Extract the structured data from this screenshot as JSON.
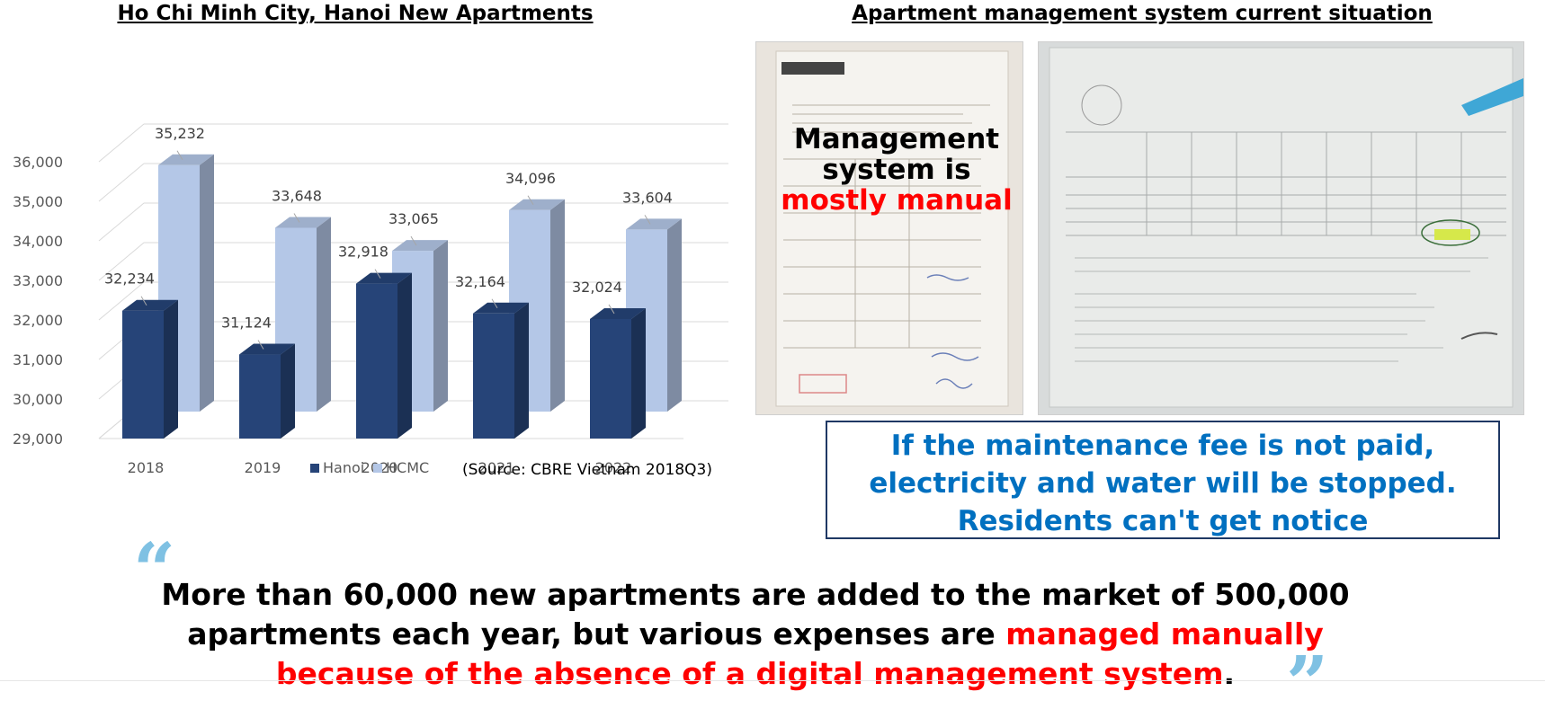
{
  "left_title": "Ho Chi Minh City, Hanoi New Apartments",
  "right_title": "Apartment management system current situation",
  "chart_data": {
    "type": "bar",
    "title": "Ho Chi Minh City, Hanoi New Apartments",
    "categories": [
      "2018",
      "2019",
      "2020",
      "2021",
      "2022"
    ],
    "series": [
      {
        "name": "Hanoi",
        "values": [
          32234,
          31124,
          32918,
          32164,
          32024
        ],
        "labels": [
          "32,234",
          "31,124",
          "32,918",
          "32,164",
          "32,024"
        ],
        "color": "#264478"
      },
      {
        "name": "HCMC",
        "values": [
          35232,
          33648,
          33065,
          34096,
          33604
        ],
        "labels": [
          "35,232",
          "33,648",
          "33,065",
          "34,096",
          "33,604"
        ],
        "color": "#b4c7e7"
      }
    ],
    "ylim": [
      29000,
      36000
    ],
    "yticks": [
      29000,
      30000,
      31000,
      32000,
      33000,
      34000,
      35000,
      36000
    ],
    "ytick_labels": [
      "29,000",
      "30,000",
      "31,000",
      "32,000",
      "33,000",
      "34,000",
      "35,000",
      "36,000"
    ],
    "grid": true,
    "legend_position": "bottom",
    "source": "(Source: CBRE Vietnam 2018Q3)",
    "style": "3d-clustered-column"
  },
  "photos": {
    "receipt": {
      "icon": "receipt-photo"
    },
    "bill": {
      "icon": "utility-bill-photo"
    }
  },
  "overlay": {
    "line1": "Management",
    "line2": "system is",
    "line3": "mostly manual"
  },
  "notice": {
    "line1": "If the maintenance fee is not paid,",
    "line2": "electricity and water will be stopped.",
    "line3": "Residents can't get notice"
  },
  "quote": {
    "open_mark": "“",
    "close_mark": "”",
    "line1": "More than 60,000 new apartments are added to the market of 500,000",
    "line2_black": "apartments each year, but various expenses are ",
    "line2_red": "managed manually",
    "line3_red": "because of the absence of a digital management system",
    "line3_end": "."
  },
  "colors": {
    "accent_red": "#ff0000",
    "notice_blue": "#0070c0",
    "hanoi": "#264478",
    "hcmc": "#b4c7e7"
  }
}
